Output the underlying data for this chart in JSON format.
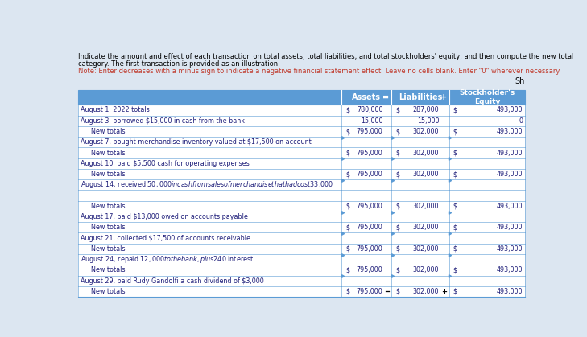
{
  "header_line1": "Indicate the amount and effect of each transaction on total assets, total liabilities, and total stockholders' equity, and then compute the new total",
  "header_line2": "category. The first transaction is provided as an illustration.",
  "note_text": "Note: Enter decreases with a minus sign to indicate a negative financial statement effect. Leave no cells blank. Enter \"0\" wherever necessary.",
  "sh_label": "Sh",
  "rows": [
    {
      "label": "August 1, 2022 totals",
      "indent": false,
      "a_dollar": "$",
      "a_val": "780,000",
      "l_dollar": "$",
      "l_val": "287,000",
      "e_dollar": "$",
      "e_val": "493,000"
    },
    {
      "label": "August 3, borrowed $15,000 in cash from the bank",
      "indent": false,
      "a_dollar": "",
      "a_val": "15,000",
      "l_dollar": "",
      "l_val": "15,000",
      "e_dollar": "",
      "e_val": "0"
    },
    {
      "label": "New totals",
      "indent": true,
      "a_dollar": "$",
      "a_val": "795,000",
      "l_dollar": "$",
      "l_val": "302,000",
      "e_dollar": "$",
      "e_val": "493,000"
    },
    {
      "label": "August 7, bought merchandise inventory valued at $17,500 on account",
      "indent": false,
      "a_dollar": "",
      "a_val": "",
      "l_dollar": "",
      "l_val": "",
      "e_dollar": "",
      "e_val": ""
    },
    {
      "label": "New totals",
      "indent": true,
      "a_dollar": "$",
      "a_val": "795,000",
      "l_dollar": "$",
      "l_val": "302,000",
      "e_dollar": "$",
      "e_val": "493,000"
    },
    {
      "label": "August 10, paid $5,500 cash for operating expenses",
      "indent": false,
      "a_dollar": "",
      "a_val": "",
      "l_dollar": "",
      "l_val": "",
      "e_dollar": "",
      "e_val": ""
    },
    {
      "label": "New totals",
      "indent": true,
      "a_dollar": "$",
      "a_val": "795,000",
      "l_dollar": "$",
      "l_val": "302,000",
      "e_dollar": "$",
      "e_val": "493,000"
    },
    {
      "label": "August 14, received $50,000 in cash from sales of merchandise that had cost $33,000",
      "indent": false,
      "a_dollar": "",
      "a_val": "",
      "l_dollar": "",
      "l_val": "",
      "e_dollar": "",
      "e_val": ""
    },
    {
      "label": "",
      "indent": false,
      "a_dollar": "",
      "a_val": "",
      "l_dollar": "",
      "l_val": "",
      "e_dollar": "",
      "e_val": ""
    },
    {
      "label": "New totals",
      "indent": true,
      "a_dollar": "$",
      "a_val": "795,000",
      "l_dollar": "$",
      "l_val": "302,000",
      "e_dollar": "$",
      "e_val": "493,000"
    },
    {
      "label": "August 17, paid $13,000 owed on accounts payable",
      "indent": false,
      "a_dollar": "",
      "a_val": "",
      "l_dollar": "",
      "l_val": "",
      "e_dollar": "",
      "e_val": ""
    },
    {
      "label": "New totals",
      "indent": true,
      "a_dollar": "$",
      "a_val": "795,000",
      "l_dollar": "$",
      "l_val": "302,000",
      "e_dollar": "$",
      "e_val": "493,000"
    },
    {
      "label": "August 21, collected $17,500 of accounts receivable",
      "indent": false,
      "a_dollar": "",
      "a_val": "",
      "l_dollar": "",
      "l_val": "",
      "e_dollar": "",
      "e_val": ""
    },
    {
      "label": "New totals",
      "indent": true,
      "a_dollar": "$",
      "a_val": "795,000",
      "l_dollar": "$",
      "l_val": "302,000",
      "e_dollar": "$",
      "e_val": "493,000"
    },
    {
      "label": "August 24, repaid $12,000 to the bank, plus $240 interest",
      "indent": false,
      "a_dollar": "",
      "a_val": "",
      "l_dollar": "",
      "l_val": "",
      "e_dollar": "",
      "e_val": ""
    },
    {
      "label": "New totals",
      "indent": true,
      "a_dollar": "$",
      "a_val": "795,000",
      "l_dollar": "$",
      "l_val": "302,000",
      "e_dollar": "$",
      "e_val": "493,000"
    },
    {
      "label": "August 29, paid Rudy Gandolfi a cash dividend of $3,000",
      "indent": false,
      "a_dollar": "",
      "a_val": "",
      "l_dollar": "",
      "l_val": "",
      "e_dollar": "",
      "e_val": ""
    },
    {
      "label": "New totals",
      "indent": true,
      "a_dollar": "$",
      "a_val": "795,000",
      "l_dollar": "$",
      "l_val": "302,000",
      "e_dollar": "$",
      "e_val": "493,000",
      "last": true
    }
  ],
  "bg_color": "#dce6f1",
  "table_header_bg": "#5b9bd5",
  "border_color": "#5b9bd5",
  "label_color": "#1f1f7a",
  "value_color": "#1f1f7a",
  "note_color": "#c0392b",
  "text_color": "#000000"
}
